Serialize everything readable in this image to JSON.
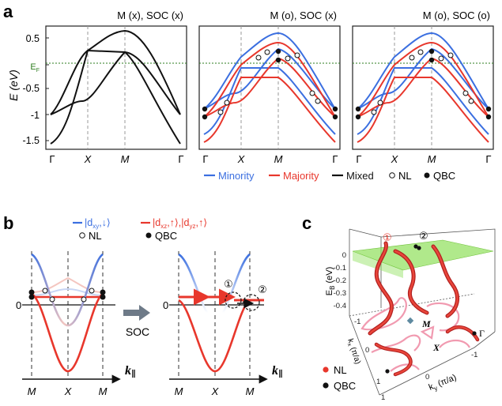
{
  "panel_a": {
    "label": "a",
    "titles": [
      "M (x), SOC (x)",
      "M (o), SOC (x)",
      "M (o), SOC (o)"
    ],
    "ylabel": "E (eV)",
    "ef_label": "E",
    "ef_sub": "F",
    "xticks": [
      "Γ",
      "X",
      "M",
      "Γ"
    ],
    "legend": {
      "minority": "Minority",
      "majority": "Majority",
      "mixed": "Mixed",
      "nl": "NL",
      "qbc": "QBC"
    }
  },
  "panel_b": {
    "label": "b",
    "legend_minority": "|d",
    "legend_minority_sub": "xy",
    "legend_minority_tail": ",↓⟩",
    "legend_majority": "|d",
    "legend_majority_sub1": "xz",
    "legend_majority_mid": ",↑⟩,|d",
    "legend_majority_sub2": "yz",
    "legend_majority_tail": ",↑⟩",
    "nl": "NL",
    "qbc": "QBC",
    "arrow_label": "SOC",
    "zero_tick": "0",
    "xticks": [
      "M",
      "X",
      "M"
    ],
    "k_label": "k",
    "k_sub": "∥",
    "circle_1": "①",
    "circle_2": "②"
  },
  "panel_c": {
    "label": "c",
    "zlabel": "E",
    "zlabel_sub": "B",
    "zlabel_tail": " (eV)",
    "zticks": [
      "0",
      "-0.1",
      "-0.2",
      "-0.3",
      "-0.4"
    ],
    "kx_label": "k",
    "kx_sub": "x",
    "kx_tail": " (π/a)",
    "ky_label": "k",
    "ky_sub": "y",
    "ky_tail": " (π/a)",
    "kx_ticks": [
      "-1",
      "0",
      "1"
    ],
    "ky_ticks": [
      "1",
      "0",
      "-1"
    ],
    "point_m": "M",
    "point_x": "X",
    "point_gamma": "Γ",
    "circle_1": "①",
    "circle_2": "②",
    "nl": "NL",
    "qbc": "QBC"
  },
  "colors": {
    "minority": "#3b6fe0",
    "majority": "#e8372c",
    "mixed": "#111111",
    "ef_line": "#2e7d1f",
    "plane": "#8fe05a"
  },
  "chart_data": [
    {
      "type": "line",
      "title": "M (x), SOC (x)",
      "ylabel": "E (eV)",
      "ylim": [
        -1.6,
        0.6
      ],
      "categories": [
        "Γ",
        "X",
        "M",
        "Γ"
      ],
      "series": [
        {
          "name": "Mixed band upper",
          "values": [
            -1.0,
            0.25,
            0.62,
            -1.0
          ]
        },
        {
          "name": "Mixed band middle",
          "values": [
            -1.0,
            -0.7,
            0.25,
            -1.0
          ]
        },
        {
          "name": "Mixed band lower",
          "values": [
            -1.55,
            -0.3,
            0.22,
            -1.55
          ]
        }
      ]
    },
    {
      "type": "line",
      "title": "M (o), SOC (x)",
      "ylabel": "E (eV)",
      "ylim": [
        -1.6,
        0.6
      ],
      "categories": [
        "Γ",
        "X",
        "M",
        "Γ"
      ],
      "series": [
        {
          "name": "Minority",
          "values": [
            -0.9,
            0.1,
            0.62,
            -0.9
          ]
        },
        {
          "name": "Majority",
          "values": [
            -1.05,
            -0.15,
            0.3,
            -1.05
          ]
        }
      ]
    },
    {
      "type": "line",
      "title": "M (o), SOC (o)",
      "ylabel": "E (eV)",
      "ylim": [
        -1.6,
        0.6
      ],
      "categories": [
        "Γ",
        "X",
        "M",
        "Γ"
      ],
      "series": [
        {
          "name": "Minority",
          "values": [
            -0.9,
            0.1,
            0.62,
            -0.9
          ]
        },
        {
          "name": "Majority",
          "values": [
            -1.05,
            -0.15,
            0.3,
            -1.05
          ]
        }
      ]
    }
  ]
}
